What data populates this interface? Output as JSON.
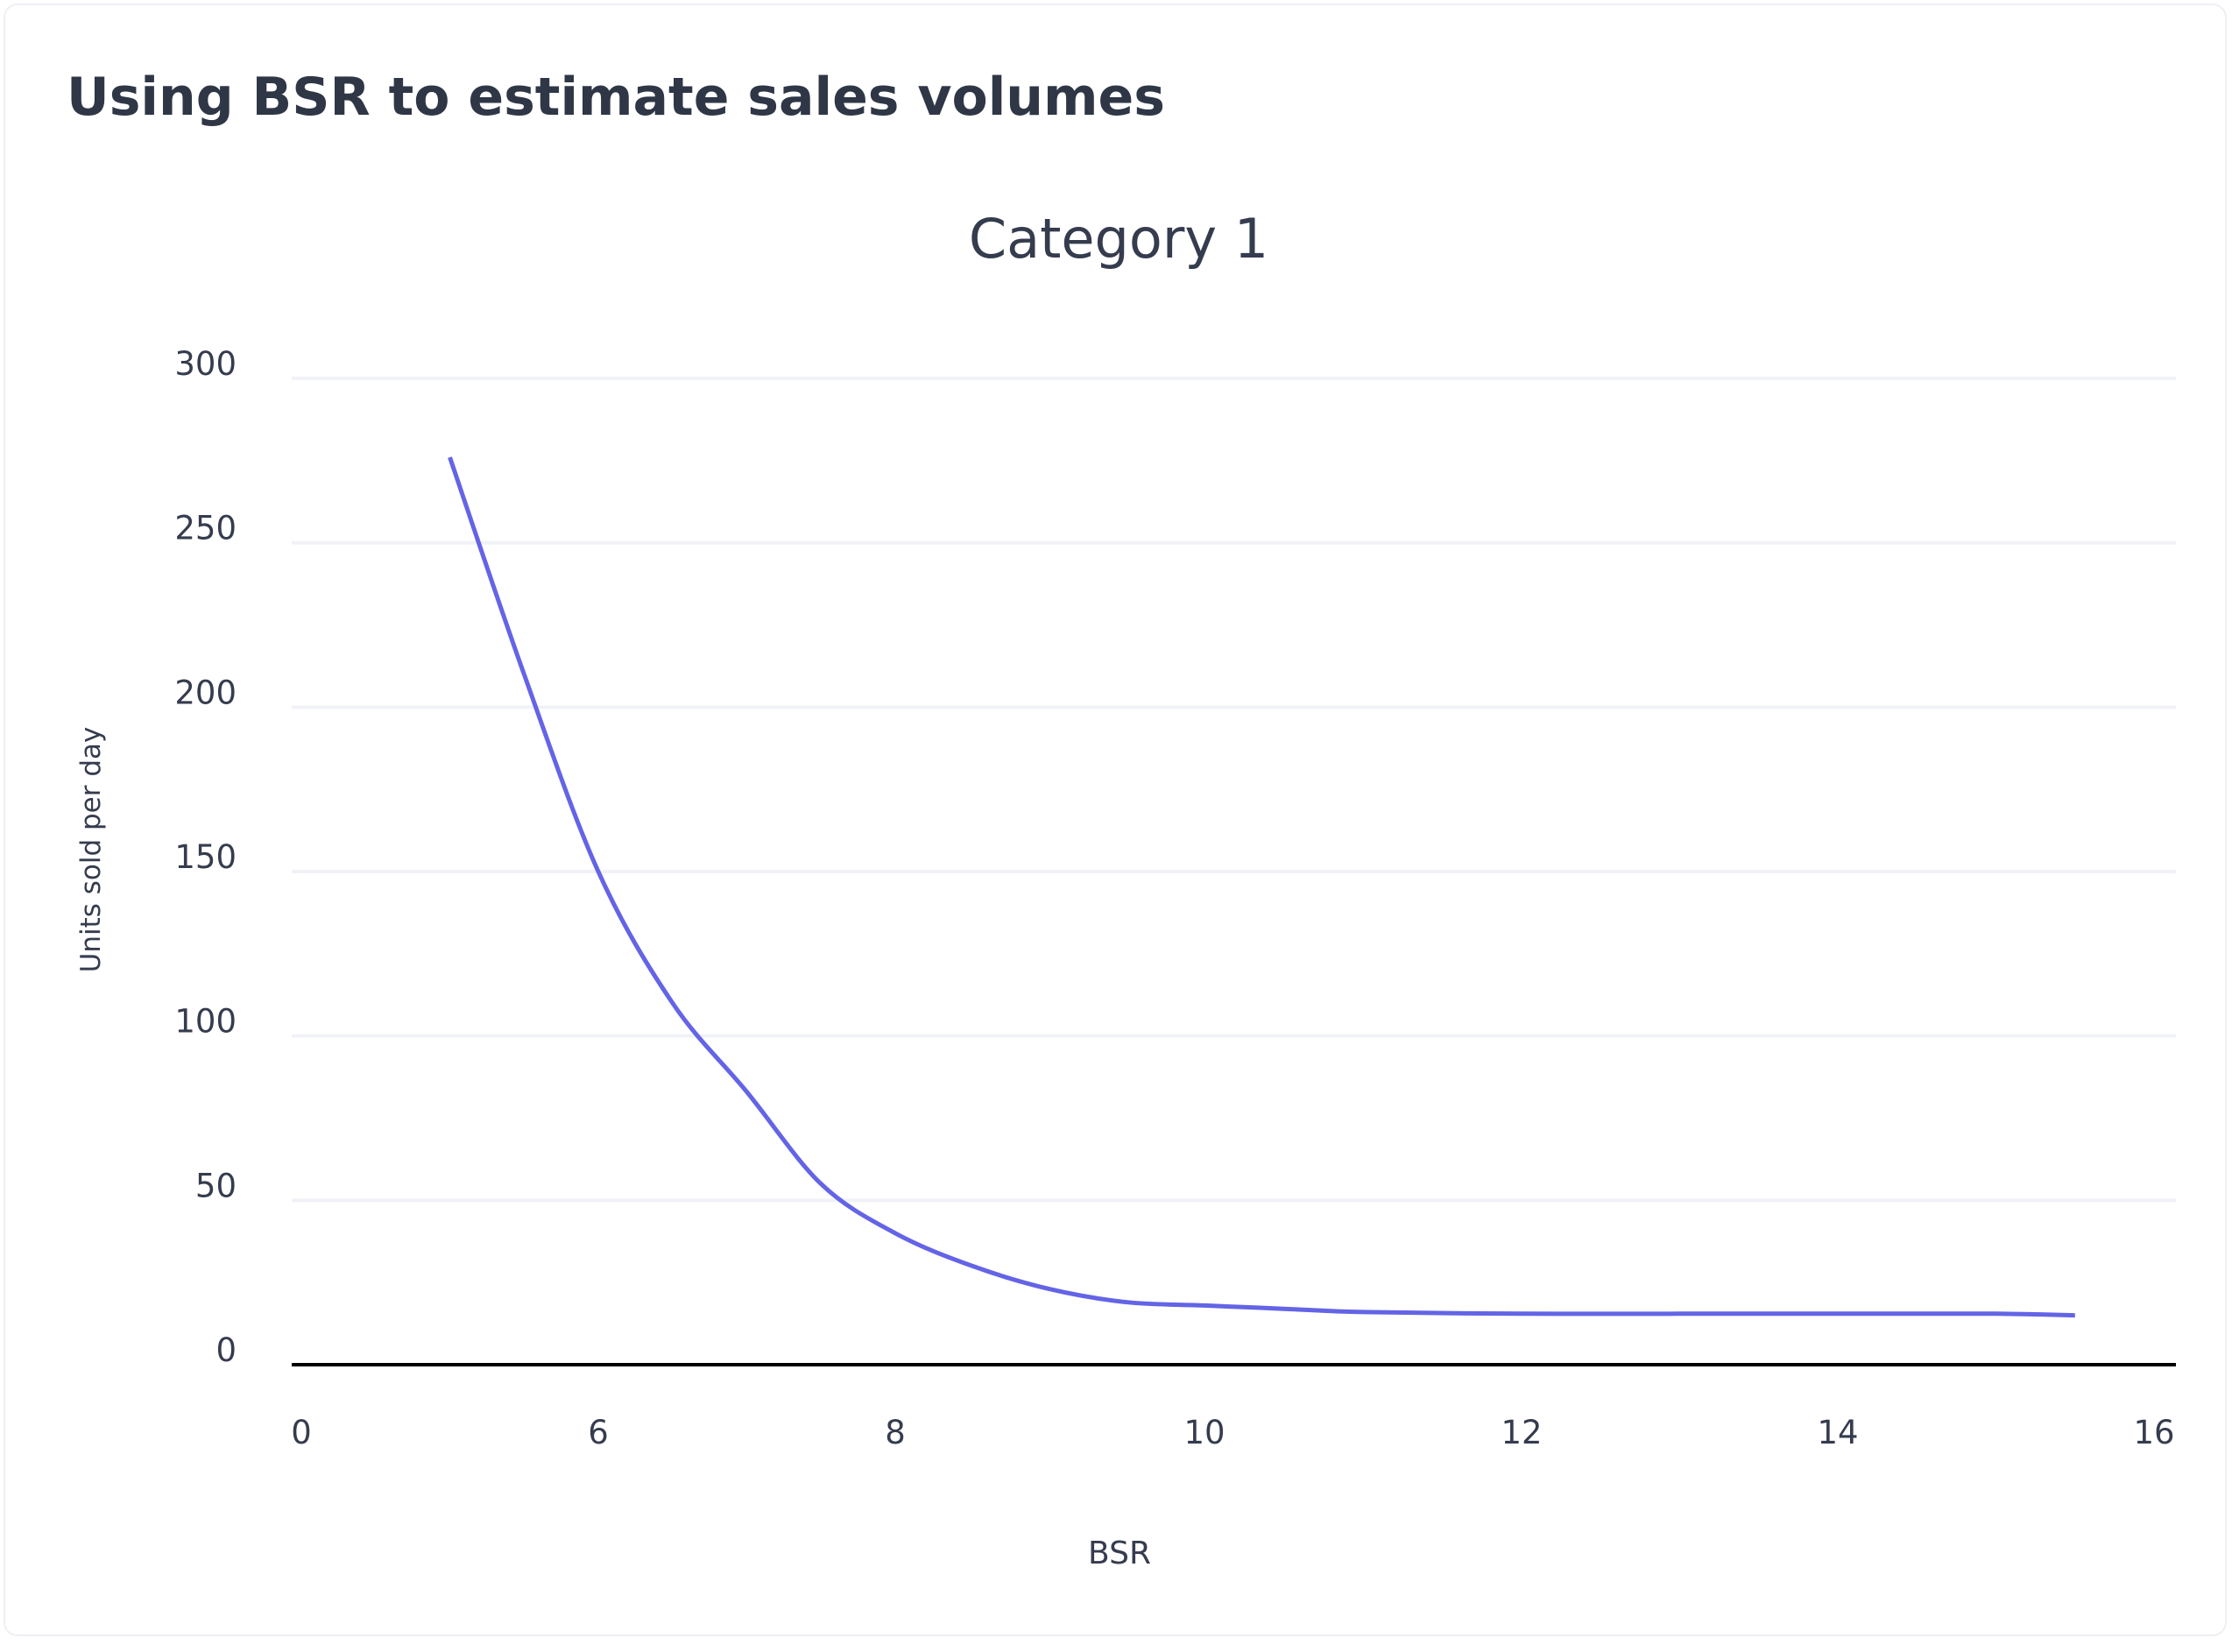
{
  "header": {
    "title": "Using BSR to estimate sales volumes"
  },
  "colors": {
    "line": "#6464e6",
    "grid": "#f0f2f7",
    "zero_axis": "#000000",
    "text": "#353c4e"
  },
  "chart_data": {
    "type": "line",
    "title": "Category 1",
    "xlabel": "BSR",
    "ylabel": "Units sold per day",
    "x_tick_labels": [
      "0",
      "6",
      "8",
      "10",
      "12",
      "14",
      "16"
    ],
    "y_ticks": [
      0,
      50,
      100,
      150,
      200,
      250,
      300
    ],
    "ylim": [
      0,
      300
    ],
    "grid": true,
    "legend": false,
    "series": [
      {
        "x": [
          5.0,
          5.5,
          6.0,
          6.5,
          7.0,
          7.5,
          8.0,
          8.5,
          9.0,
          9.5,
          10.0,
          10.5,
          11.0,
          12.0,
          13.0,
          14.0,
          15.0,
          15.5
        ],
        "values": [
          276,
          210,
          150,
          110,
          83,
          55,
          40,
          30,
          23,
          19,
          18,
          17,
          16,
          15.5,
          15.5,
          15.5,
          15.5,
          15
        ]
      }
    ]
  }
}
